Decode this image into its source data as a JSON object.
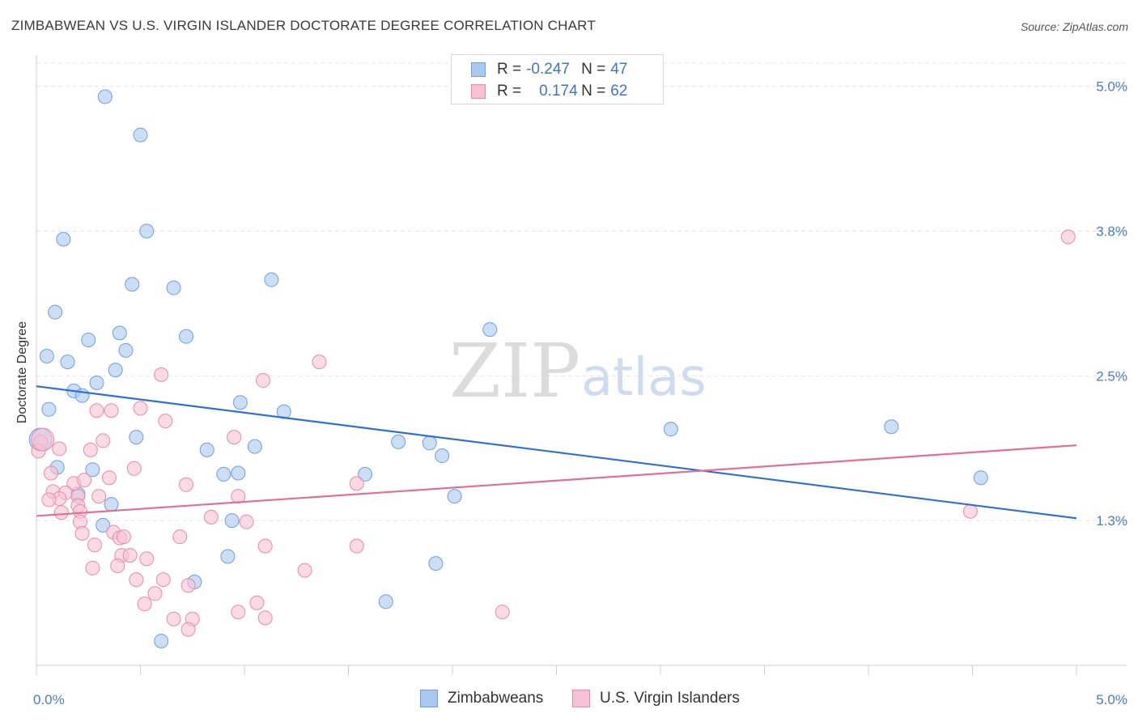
{
  "title": "ZIMBABWEAN VS U.S. VIRGIN ISLANDER DOCTORATE DEGREE CORRELATION CHART",
  "source": "Source: ZipAtlas.com",
  "watermark": {
    "zip": "ZIP",
    "atlas": "atlas"
  },
  "legend_top": {
    "rows": [
      {
        "r_label": "R =",
        "r_value": "-0.247",
        "n_label": "N =",
        "n_value": "47",
        "color": "#a9c8f0",
        "border": "#6f9fdc"
      },
      {
        "r_label": "R =",
        "r_value": "0.174",
        "n_label": "N =",
        "n_value": "62",
        "color": "#f7c3d4",
        "border": "#e98aa9"
      }
    ]
  },
  "legend_bottom": [
    {
      "label": "Zimbabweans",
      "color": "#a9c8f0",
      "border": "#6f9fdc"
    },
    {
      "label": "U.S. Virgin Islanders",
      "color": "#f7c3d4",
      "border": "#e98aa9"
    }
  ],
  "chart_data": {
    "type": "scatter",
    "ylabel": "Doctorate Degree",
    "xlim": [
      0,
      5
    ],
    "ylim": [
      0.0,
      5.2
    ],
    "x_tick_labels": [
      "0.0%",
      "5.0%"
    ],
    "y_ticks": [
      {
        "value": 1.25,
        "label": "1.3%"
      },
      {
        "value": 2.5,
        "label": "2.5%"
      },
      {
        "value": 3.75,
        "label": "3.8%"
      },
      {
        "value": 5.0,
        "label": "5.0%"
      }
    ],
    "grid": "horizontal-dashed",
    "series": [
      {
        "name": "Zimbabweans",
        "color": "#a9c8f0",
        "border": "#6f9fdc",
        "line_color": "#2f6fcf",
        "trend": [
          [
            0,
            2.41
          ],
          [
            5,
            1.27
          ]
        ],
        "points": [
          [
            0.33,
            4.91
          ],
          [
            0.5,
            4.58
          ],
          [
            0.53,
            3.75
          ],
          [
            0.13,
            3.68
          ],
          [
            0.46,
            3.29
          ],
          [
            0.66,
            3.26
          ],
          [
            1.13,
            3.33
          ],
          [
            0.09,
            3.05
          ],
          [
            0.25,
            2.81
          ],
          [
            0.4,
            2.87
          ],
          [
            0.72,
            2.84
          ],
          [
            2.18,
            2.9
          ],
          [
            0.43,
            2.72
          ],
          [
            0.05,
            2.67
          ],
          [
            0.15,
            2.62
          ],
          [
            0.38,
            2.55
          ],
          [
            0.29,
            2.44
          ],
          [
            0.18,
            2.37
          ],
          [
            0.22,
            2.33
          ],
          [
            0.98,
            2.27
          ],
          [
            1.19,
            2.19
          ],
          [
            0.06,
            2.21
          ],
          [
            0.48,
            1.97
          ],
          [
            0.02,
            1.95
          ],
          [
            1.74,
            1.93
          ],
          [
            1.89,
            1.92
          ],
          [
            1.05,
            1.89
          ],
          [
            0.82,
            1.86
          ],
          [
            3.05,
            2.04
          ],
          [
            4.11,
            2.06
          ],
          [
            0.1,
            1.71
          ],
          [
            0.27,
            1.69
          ],
          [
            0.9,
            1.65
          ],
          [
            0.97,
            1.66
          ],
          [
            1.58,
            1.65
          ],
          [
            1.95,
            1.81
          ],
          [
            4.54,
            1.62
          ],
          [
            0.2,
            1.48
          ],
          [
            0.36,
            1.39
          ],
          [
            2.01,
            1.46
          ],
          [
            0.32,
            1.21
          ],
          [
            0.94,
            1.25
          ],
          [
            0.92,
            0.94
          ],
          [
            1.92,
            0.88
          ],
          [
            0.76,
            0.72
          ],
          [
            1.68,
            0.55
          ],
          [
            0.6,
            0.21
          ]
        ]
      },
      {
        "name": "U.S. Virgin Islanders",
        "color": "#f7c3d4",
        "border": "#e98aa9",
        "line_color": "#e0709a",
        "trend": [
          [
            0,
            1.29
          ],
          [
            5,
            1.9
          ]
        ],
        "points": [
          [
            4.96,
            3.7
          ],
          [
            1.36,
            2.62
          ],
          [
            1.09,
            2.46
          ],
          [
            0.6,
            2.51
          ],
          [
            0.5,
            2.22
          ],
          [
            0.29,
            2.2
          ],
          [
            0.36,
            2.2
          ],
          [
            0.62,
            2.11
          ],
          [
            0.95,
            1.97
          ],
          [
            0.32,
            1.94
          ],
          [
            0.02,
            1.93
          ],
          [
            0.01,
            1.85
          ],
          [
            0.11,
            1.87
          ],
          [
            0.26,
            1.86
          ],
          [
            0.47,
            1.7
          ],
          [
            0.07,
            1.66
          ],
          [
            0.35,
            1.62
          ],
          [
            0.18,
            1.57
          ],
          [
            0.23,
            1.6
          ],
          [
            0.72,
            1.56
          ],
          [
            1.54,
            1.57
          ],
          [
            0.08,
            1.5
          ],
          [
            0.14,
            1.49
          ],
          [
            0.3,
            1.46
          ],
          [
            0.11,
            1.44
          ],
          [
            0.2,
            1.46
          ],
          [
            0.06,
            1.43
          ],
          [
            0.2,
            1.38
          ],
          [
            0.97,
            1.46
          ],
          [
            0.12,
            1.32
          ],
          [
            0.21,
            1.33
          ],
          [
            0.84,
            1.28
          ],
          [
            1.01,
            1.24
          ],
          [
            0.21,
            1.24
          ],
          [
            0.37,
            1.15
          ],
          [
            0.22,
            1.14
          ],
          [
            0.4,
            1.1
          ],
          [
            0.42,
            1.11
          ],
          [
            0.69,
            1.11
          ],
          [
            0.28,
            1.04
          ],
          [
            1.1,
            1.03
          ],
          [
            1.54,
            1.03
          ],
          [
            0.41,
            0.95
          ],
          [
            0.45,
            0.95
          ],
          [
            0.53,
            0.92
          ],
          [
            0.27,
            0.84
          ],
          [
            0.39,
            0.86
          ],
          [
            1.29,
            0.82
          ],
          [
            4.49,
            1.33
          ],
          [
            0.48,
            0.74
          ],
          [
            0.61,
            0.74
          ],
          [
            0.73,
            0.69
          ],
          [
            0.57,
            0.62
          ],
          [
            0.52,
            0.53
          ],
          [
            1.06,
            0.54
          ],
          [
            0.97,
            0.46
          ],
          [
            1.1,
            0.41
          ],
          [
            0.66,
            0.4
          ],
          [
            0.75,
            0.4
          ],
          [
            0.73,
            0.31
          ],
          [
            2.24,
            0.46
          ],
          [
            0.03,
            1.95
          ]
        ]
      }
    ]
  }
}
